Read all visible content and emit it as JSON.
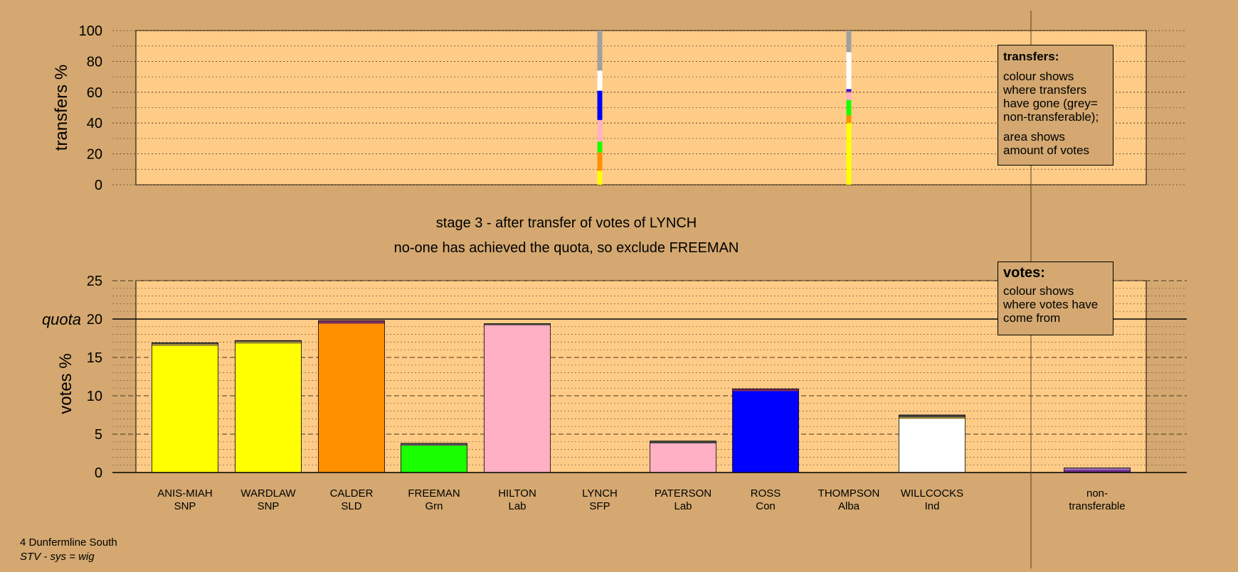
{
  "stage_title": "stage 3 - after transfer of votes of LYNCH",
  "stage_subtitle": "no-one has achieved the quota, so exclude FREEMAN",
  "quota_label": "quota",
  "legends": {
    "transfers": {
      "heading": "transfers:",
      "line1": "colour shows where transfers have gone (grey= non-transferable);",
      "line2": "area shows amount of votes"
    },
    "votes": {
      "heading": "votes:",
      "line1": "colour shows where votes have come from"
    }
  },
  "footer": {
    "ward": "4 Dunfermline South",
    "system": "STV - sys = wig"
  },
  "colors": {
    "background": "#d4a870",
    "plot_area": "#ffcc88",
    "SNP": "#ffff00",
    "SLD": "#ff9000",
    "Grn": "#1aff00",
    "Lab": "#ffb0c4",
    "SFP": "#6b2b8c",
    "Con": "#0000ff",
    "Alba": "#9b6cb8",
    "Ind": "#ffffff",
    "nontransferable": "#a0a0a0"
  },
  "chart_data": [
    {
      "type": "bar",
      "name": "transfers",
      "ylabel": "transfers %",
      "ylim": [
        0,
        100
      ],
      "yticks": [
        0,
        20,
        40,
        60,
        80,
        100
      ],
      "categories": [
        "ANIS-MIAH SNP",
        "WARDLAW SNP",
        "CALDER SLD",
        "FREEMAN Grn",
        "HILTON Lab",
        "LYNCH SFP",
        "PATERSON Lab",
        "ROSS Con",
        "THOMPSON Alba",
        "WILLCOCKS Ind"
      ],
      "stacked_transfers": [
        {
          "from": "LYNCH",
          "segments": [
            {
              "to": "ANIS-MIAH/WARDLAW (SNP)",
              "color": "#ffff00",
              "value": 9
            },
            {
              "to": "CALDER (SLD)",
              "color": "#ff9000",
              "value": 12
            },
            {
              "to": "FREEMAN (Grn)",
              "color": "#1aff00",
              "value": 7
            },
            {
              "to": "HILTON/PATERSON (Lab)",
              "color": "#ffb0c4",
              "value": 14
            },
            {
              "to": "ROSS (Con)",
              "color": "#0000ff",
              "value": 19
            },
            {
              "to": "WILLCOCKS (Ind)",
              "color": "#ffffff",
              "value": 13
            },
            {
              "to": "non-transferable",
              "color": "#a0a0a0",
              "value": 26
            }
          ]
        },
        {
          "from": "THOMPSON",
          "segments": [
            {
              "to": "ANIS-MIAH/WARDLAW (SNP)",
              "color": "#ffff00",
              "value": 40
            },
            {
              "to": "CALDER (SLD)",
              "color": "#ff9000",
              "value": 5
            },
            {
              "to": "FREEMAN (Grn)",
              "color": "#1aff00",
              "value": 10
            },
            {
              "to": "HILTON/PATERSON (Lab)",
              "color": "#ffb0c4",
              "value": 5
            },
            {
              "to": "LYNCH (SFP)",
              "color": "#6b2b8c",
              "value": 1
            },
            {
              "to": "ROSS (Con)",
              "color": "#0000ff",
              "value": 1
            },
            {
              "to": "WILLCOCKS (Ind)",
              "color": "#ffffff",
              "value": 24
            },
            {
              "to": "non-transferable",
              "color": "#a0a0a0",
              "value": 14
            }
          ]
        }
      ]
    },
    {
      "type": "bar",
      "name": "votes",
      "ylabel": "votes %",
      "ylim": [
        0,
        25
      ],
      "yticks": [
        0,
        5,
        10,
        15,
        20,
        25
      ],
      "quota": 20,
      "candidates": [
        {
          "name": "ANIS-MIAH",
          "party": "SNP",
          "total": 16.9,
          "segments": [
            {
              "from": "SNP",
              "value": 16.5,
              "color": "#ffff00"
            },
            {
              "from": "transfers",
              "value": 0.25,
              "color": "#9b8a30"
            },
            {
              "from": "transfers",
              "value": 0.15,
              "color": "#444444"
            }
          ]
        },
        {
          "name": "WARDLAW",
          "party": "SNP",
          "total": 17.2,
          "segments": [
            {
              "from": "SNP",
              "value": 16.8,
              "color": "#ffff00"
            },
            {
              "from": "transfers",
              "value": 0.25,
              "color": "#9b8a30"
            },
            {
              "from": "transfers",
              "value": 0.15,
              "color": "#444444"
            }
          ]
        },
        {
          "name": "CALDER",
          "party": "SLD",
          "total": 19.8,
          "segments": [
            {
              "from": "SLD",
              "value": 19.4,
              "color": "#ff9000"
            },
            {
              "from": "transfers",
              "value": 0.4,
              "color": "#7a2e5e"
            }
          ]
        },
        {
          "name": "FREEMAN",
          "party": "Grn",
          "total": 3.8,
          "segments": [
            {
              "from": "Grn",
              "value": 3.5,
              "color": "#1aff00"
            },
            {
              "from": "transfers",
              "value": 0.3,
              "color": "#555555"
            }
          ]
        },
        {
          "name": "HILTON",
          "party": "Lab",
          "total": 19.4,
          "segments": [
            {
              "from": "Lab",
              "value": 19.2,
              "color": "#ffb0c4"
            },
            {
              "from": "transfers",
              "value": 0.2,
              "color": "#444444"
            }
          ]
        },
        {
          "name": "LYNCH",
          "party": "SFP",
          "total": 0,
          "segments": []
        },
        {
          "name": "PATERSON",
          "party": "Lab",
          "total": 4.1,
          "segments": [
            {
              "from": "Lab",
              "value": 3.8,
              "color": "#ffb0c4"
            },
            {
              "from": "transfers",
              "value": 0.3,
              "color": "#444444"
            }
          ]
        },
        {
          "name": "ROSS",
          "party": "Con",
          "total": 10.9,
          "segments": [
            {
              "from": "Con",
              "value": 10.6,
              "color": "#0000ff"
            },
            {
              "from": "transfers",
              "value": 0.3,
              "color": "#7a2e5e"
            }
          ]
        },
        {
          "name": "THOMPSON",
          "party": "Alba",
          "total": 0,
          "segments": []
        },
        {
          "name": "WILLCOCKS",
          "party": "Ind",
          "total": 7.5,
          "segments": [
            {
              "from": "Ind",
              "value": 7.0,
              "color": "#ffffff"
            },
            {
              "from": "transfers",
              "value": 0.2,
              "color": "#9b8a30"
            },
            {
              "from": "transfers",
              "value": 0.3,
              "color": "#444444"
            }
          ]
        }
      ],
      "nontransferable": {
        "label_line1": "non-",
        "label_line2": "transferable",
        "total": 0.6,
        "segments": [
          {
            "from": "SFP",
            "value": 0.35,
            "color": "#6b2b8c"
          },
          {
            "from": "Alba",
            "value": 0.25,
            "color": "#9b6cb8"
          }
        ]
      }
    }
  ]
}
